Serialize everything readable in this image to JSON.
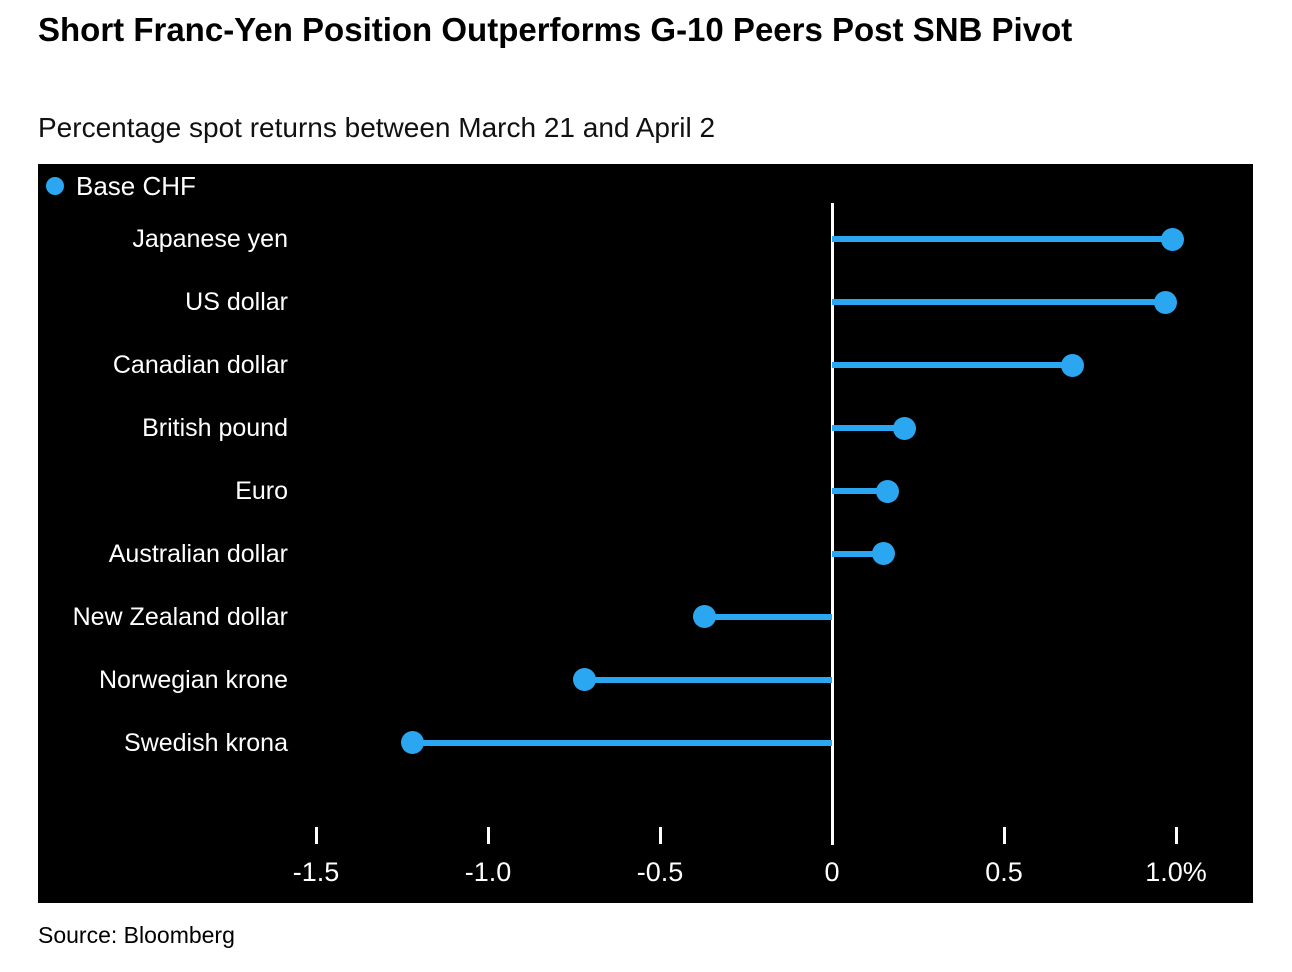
{
  "chart_data": {
    "type": "lollipop",
    "orientation": "horizontal",
    "title": "Short Franc-Yen Position Outperforms G-10 Peers Post SNB Pivot",
    "subtitle": "Percentage spot returns between March 21 and April 2",
    "source": "Source: Bloomberg",
    "legend": {
      "label": "Base CHF",
      "position": "top-left"
    },
    "categories": [
      "Japanese yen",
      "US dollar",
      "Canadian dollar",
      "British pound",
      "Euro",
      "Australian dollar",
      "New Zealand dollar",
      "Norwegian krone",
      "Swedish krona"
    ],
    "values": [
      0.99,
      0.97,
      0.7,
      0.21,
      0.16,
      0.15,
      -0.37,
      -0.72,
      -1.22
    ],
    "unit": "%",
    "x_ticks": {
      "labels": [
        "-1.5",
        "-1.0",
        "-0.5",
        "0",
        "0.5",
        "1.0%"
      ],
      "values": [
        -1.5,
        -1.0,
        -0.5,
        0,
        0.5,
        1.0
      ]
    },
    "xlim": [
      -2.3,
      1.22
    ],
    "grid": false,
    "colors": {
      "background": "#000000",
      "series": "#2AA7F0",
      "axis": "#ffffff",
      "panel_text": "#ffffff",
      "page_text": "#000000"
    }
  }
}
